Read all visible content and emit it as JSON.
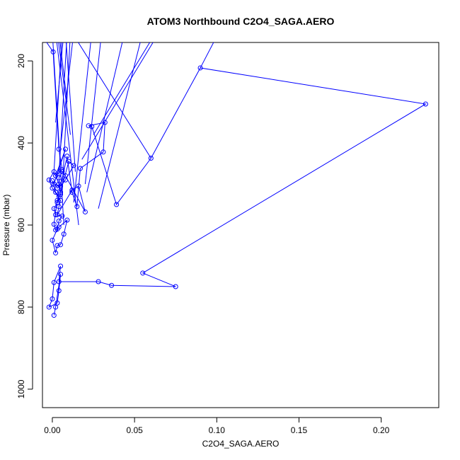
{
  "chart_data": {
    "type": "line",
    "title": "ATOM3 Northbound C2O4_SAGA.AERO",
    "xlabel": "C2O4_SAGA.AERO",
    "ylabel": "Pressure (mbar)",
    "xlim": [
      -0.006,
      0.235
    ],
    "ylim": [
      1045,
      155
    ],
    "y_reversed": true,
    "xticks": [
      0.0,
      0.05,
      0.1,
      0.15,
      0.2
    ],
    "xtick_labels": [
      "0.00",
      "0.05",
      "0.10",
      "0.15",
      "0.20"
    ],
    "yticks": [
      200,
      400,
      600,
      800,
      1000
    ],
    "ytick_labels": [
      "200",
      "400",
      "600",
      "800",
      "1000"
    ],
    "grid": false,
    "series_color": "#0000ff",
    "series": [
      {
        "x": [
          0.0005,
          0.004,
          0.006,
          0.002,
          0.008,
          0.001,
          0.005,
          0.003,
          0.0,
          0.002,
          0.004,
          0.003,
          0.001,
          0.002,
          0.006,
          0.004,
          0.003,
          0.0,
          0.002,
          0.003,
          0.005,
          0.007,
          0.009,
          0.004,
          0.002,
          0.001,
          0.003,
          0.005,
          0.004,
          0.002,
          0.001,
          -0.002,
          0.0,
          0.005,
          0.004,
          0.003,
          0.012,
          0.016,
          0.02,
          0.008,
          0.006,
          0.004,
          0.005,
          0.01,
          0.013,
          0.008,
          0.005,
          0.009,
          0.012,
          0.015,
          0.017,
          0.031,
          0.032,
          0.022,
          0.024,
          0.039,
          0.06,
          0.09,
          0.227,
          0.055,
          0.075,
          0.036,
          0.028,
          0.004,
          0.005,
          0.001,
          0.0,
          -0.002,
          0.003,
          0.004,
          0.005,
          0.002,
          0.001
        ],
        "y": [
          178,
          415,
          465,
          480,
          415,
          500,
          505,
          510,
          492,
          520,
          530,
          545,
          560,
          575,
          578,
          590,
          610,
          637,
          668,
          650,
          648,
          622,
          588,
          605,
          612,
          598,
          540,
          525,
          500,
          480,
          470,
          490,
          510,
          540,
          555,
          575,
          515,
          505,
          568,
          480,
          470,
          485,
          520,
          445,
          455,
          490,
          505,
          432,
          520,
          555,
          462,
          422,
          350,
          358,
          360,
          550,
          437,
          217,
          305,
          717,
          750,
          747,
          738,
          738,
          700,
          740,
          780,
          800,
          790,
          760,
          720,
          800,
          820
        ]
      }
    ]
  }
}
